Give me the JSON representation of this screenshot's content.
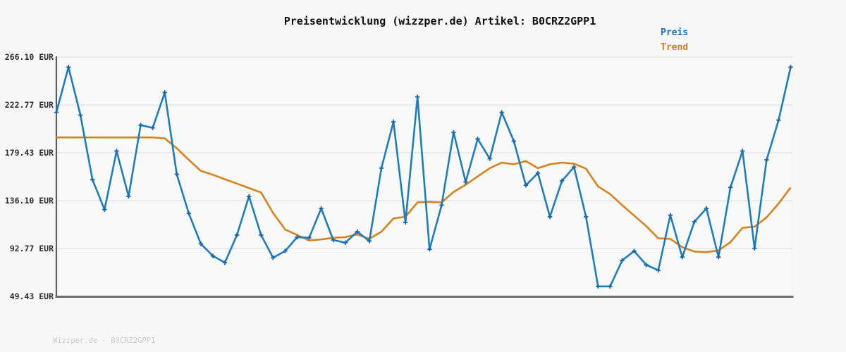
{
  "title": "Preisentwicklung (wizzper.de) Artikel: B0CRZ2GPP1",
  "legend": {
    "items": [
      {
        "label": "Preis",
        "color": "#1474bc"
      },
      {
        "label": "Trend",
        "color": "#d9820f"
      }
    ]
  },
  "y_axis": {
    "unit": "EUR",
    "labels": [
      "266.10 EUR",
      "222.77 EUR",
      "179.43 EUR",
      "136.10 EUR",
      "92.77 EUR",
      "49.43 EUR"
    ],
    "values": [
      266.1,
      222.77,
      179.43,
      136.1,
      92.77,
      49.43
    ]
  },
  "footer": "Wizzper.de - B0CRZ2GPP1",
  "colors": {
    "background": "#f7f7f7",
    "plot_background": "#f9f9f9",
    "grid": "#e8e8e8",
    "left_spine": "#5f5f5f",
    "bottom_spine": "#6e6e6e",
    "preis_line": "#1e7dbe",
    "preis_marker": "#1467a8",
    "trend_line": "#d9821c"
  },
  "chart_data": {
    "type": "line",
    "title": "Preisentwicklung (wizzper.de) Artikel: B0CRZ2GPP1",
    "xlabel": "",
    "ylabel": "",
    "ylim": [
      49.43,
      266.1
    ],
    "y_ticks": [
      266.1,
      222.77,
      179.43,
      136.1,
      92.77,
      49.43
    ],
    "grid": "horizontal",
    "legend_position": "top-right",
    "x_count": 62,
    "x_axis_labels": "none",
    "series": [
      {
        "name": "Preis",
        "color": "#1e7dbe",
        "marker": "plus",
        "values": [
          216,
          257,
          213.5,
          155,
          128,
          181,
          140,
          204.5,
          202,
          234,
          160,
          124.5,
          97,
          86,
          80,
          105,
          140,
          105,
          84.5,
          90.5,
          103,
          102.5,
          129,
          100.5,
          98,
          108,
          99.5,
          165.5,
          207.5,
          116.5,
          230,
          92,
          132,
          198,
          153,
          192,
          174,
          216,
          190,
          150,
          161,
          121.5,
          154,
          166.5,
          121.5,
          58.5,
          58.5,
          82,
          90.5,
          78,
          73,
          123,
          85,
          117,
          129,
          85,
          148,
          181,
          93,
          173,
          209,
          257
        ]
      },
      {
        "name": "Trend",
        "color": "#d9821c",
        "marker": "none",
        "values": [
          193.3,
          193.3,
          193.3,
          193.3,
          193.3,
          193.3,
          193.3,
          193.3,
          193.3,
          192.5,
          183.5,
          173,
          163,
          159.5,
          155.5,
          151.5,
          147.5,
          143.5,
          125,
          110,
          105,
          100,
          101,
          102.5,
          103,
          105.5,
          101.5,
          108,
          120,
          121.5,
          134.5,
          135,
          134.5,
          144,
          150.5,
          158,
          165.5,
          170.5,
          169,
          172,
          165.5,
          169,
          170.5,
          169.5,
          165,
          149,
          142,
          132,
          122.5,
          113,
          102,
          101.5,
          94,
          90,
          89.5,
          91,
          98.5,
          111.5,
          112.5,
          121,
          133.5,
          148
        ]
      }
    ]
  }
}
